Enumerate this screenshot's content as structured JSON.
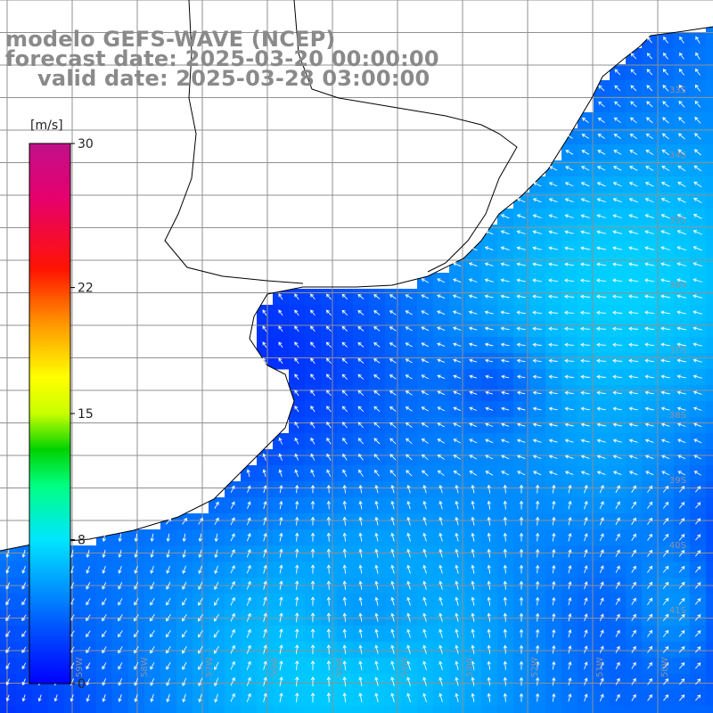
{
  "title": {
    "line1": "modelo GEFS-WAVE (NCEP)",
    "line2": "forecast date: 2025-03-20 00:00:00",
    "line3": "valid date: 2025-03-28 03:00:00"
  },
  "colorbar": {
    "unit": "[m/s]",
    "ticks": [
      "30",
      "22",
      "15",
      "8",
      "0"
    ],
    "tick_values": [
      30,
      22,
      15,
      8,
      0
    ],
    "range": [
      0,
      30
    ],
    "colors": [
      "#0000ff",
      "#0070ff",
      "#00e0ff",
      "#00ff80",
      "#00d000",
      "#b0ff00",
      "#ffff00",
      "#ff9900",
      "#ff2000",
      "#e00070",
      "#c0108a"
    ]
  },
  "grid": {
    "lat_labels": [
      "33S",
      "34S",
      "35S",
      "36S",
      "37S",
      "38S",
      "39S",
      "40S",
      "41S"
    ],
    "lon_labels": [
      "59W",
      "58W",
      "57W",
      "56W",
      "55W",
      "54W",
      "53W",
      "52W",
      "51W",
      "50W"
    ]
  },
  "colors": {
    "land": "#ffffff",
    "coastline": "#000000",
    "gridline": "#909090",
    "arrow": "#ffffff",
    "title": "#8a8a8a"
  }
}
